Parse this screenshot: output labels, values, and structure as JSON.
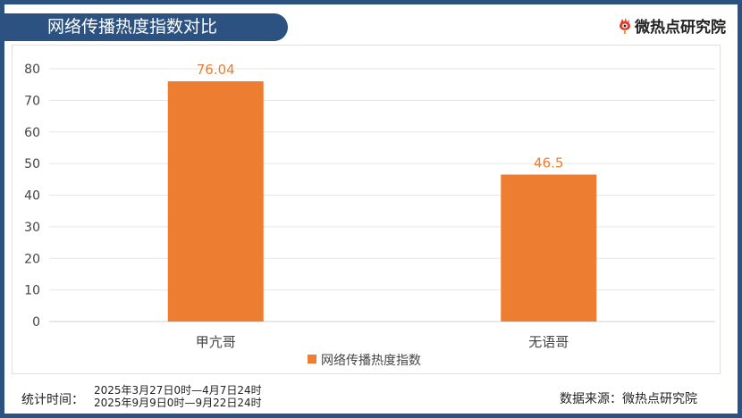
{
  "header": {
    "title": "网络传播热度指数对比",
    "logo_text": "微热点研究院"
  },
  "chart_data": {
    "type": "bar",
    "title": "网络传播热度指数对比",
    "categories": [
      "甲亢哥",
      "无语哥"
    ],
    "series": [
      {
        "name": "网络传播热度指数",
        "values": [
          76.04,
          46.5
        ],
        "labels": [
          "76.04",
          "46.5"
        ],
        "color": "#ed7d31"
      }
    ],
    "ylim": [
      0,
      80
    ],
    "yticks": [
      0,
      10,
      20,
      30,
      40,
      50,
      60,
      70,
      80
    ],
    "grid": true,
    "legend": "bottom",
    "xlabel": "",
    "ylabel": ""
  },
  "footer": {
    "stat_label": "统计时间：",
    "dates": [
      "2025年3月27日0时—4月7日24时",
      "2025年9月9日0时—9月22日24时"
    ],
    "source": "数据来源：微热点研究院"
  }
}
